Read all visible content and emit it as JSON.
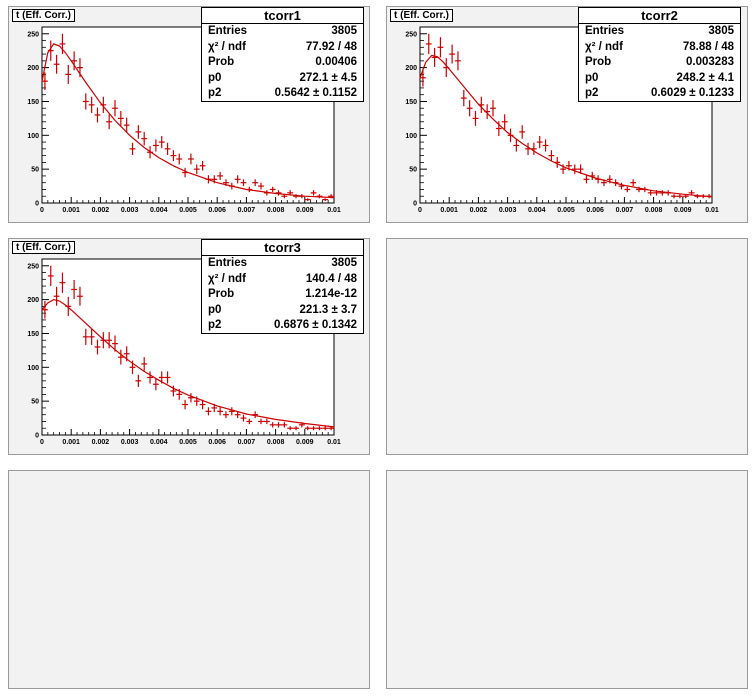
{
  "canvas": {
    "background": "#f2f2f2",
    "marker_color": "#cc0000",
    "fit_color": "#cc0000"
  },
  "pads": [
    {
      "histogram_title": "t (Eff. Corr.)",
      "stats": {
        "name": "tcorr1",
        "rows": [
          {
            "label": "Entries",
            "value": "3805"
          },
          {
            "label": "χ² / ndf",
            "value": "77.92 / 48"
          },
          {
            "label": "Prob",
            "value": "0.00406"
          },
          {
            "label": "p0",
            "value": "272.1 ± 4.5"
          },
          {
            "label": "p2",
            "value": "0.5642 ± 0.1152"
          }
        ]
      }
    },
    {
      "histogram_title": "t (Eff. Corr.)",
      "stats": {
        "name": "tcorr2",
        "rows": [
          {
            "label": "Entries",
            "value": "3805"
          },
          {
            "label": "χ² / ndf",
            "value": "78.88 / 48"
          },
          {
            "label": "Prob",
            "value": "0.003283"
          },
          {
            "label": "p0",
            "value": "248.2 ± 4.1"
          },
          {
            "label": "p2",
            "value": "0.6029 ± 0.1233"
          }
        ]
      }
    },
    {
      "histogram_title": "t (Eff. Corr.)",
      "stats": {
        "name": "tcorr3",
        "rows": [
          {
            "label": "Entries",
            "value": "3805"
          },
          {
            "label": "χ² / ndf",
            "value": "140.4 / 48"
          },
          {
            "label": "Prob",
            "value": "1.214e-12"
          },
          {
            "label": "p0",
            "value": "221.3 ± 3.7"
          },
          {
            "label": "p2",
            "value": "0.6876 ± 0.1342"
          }
        ]
      }
    },
    {
      "empty": true
    },
    {
      "empty": true
    },
    {
      "empty": true
    }
  ],
  "chart_data": [
    {
      "type": "scatter",
      "name": "tcorr1",
      "xlim": [
        0,
        0.01
      ],
      "ylim": [
        0,
        260
      ],
      "x_ticks": [
        "0",
        "0.001",
        "0.002",
        "0.003",
        "0.004",
        "0.005",
        "0.006",
        "0.007",
        "0.008",
        "0.009",
        "0.01"
      ],
      "y_ticks": [
        "0",
        "50",
        "100",
        "150",
        "200",
        "250"
      ],
      "points": {
        "x": [
          0.0001,
          0.0003,
          0.0005,
          0.0007,
          0.0009,
          0.0011,
          0.0013,
          0.0015,
          0.0017,
          0.0019,
          0.0021,
          0.0023,
          0.0025,
          0.0027,
          0.0029,
          0.0031,
          0.0033,
          0.0035,
          0.0037,
          0.0039,
          0.0041,
          0.0043,
          0.0045,
          0.0047,
          0.0049,
          0.0051,
          0.0053,
          0.0055,
          0.0057,
          0.0059,
          0.0061,
          0.0063,
          0.0065,
          0.0067,
          0.0069,
          0.0071,
          0.0073,
          0.0075,
          0.0077,
          0.0079,
          0.0081,
          0.0083,
          0.0085,
          0.0087,
          0.0089,
          0.0091,
          0.0093,
          0.0095,
          0.0097,
          0.0099
        ],
        "y": [
          180,
          225,
          205,
          235,
          190,
          210,
          200,
          150,
          145,
          130,
          145,
          120,
          140,
          125,
          115,
          80,
          105,
          95,
          75,
          85,
          90,
          80,
          70,
          65,
          45,
          65,
          50,
          55,
          35,
          35,
          40,
          30,
          25,
          35,
          30,
          20,
          30,
          25,
          15,
          20,
          15,
          10,
          15,
          10,
          10,
          5,
          15,
          10,
          5,
          10
        ],
        "yerr": [
          13,
          15,
          14,
          15,
          14,
          14,
          14,
          12,
          12,
          11,
          12,
          11,
          12,
          11,
          11,
          9,
          10,
          10,
          9,
          9,
          9,
          9,
          8,
          8,
          7,
          8,
          7,
          7,
          6,
          6,
          6,
          5,
          5,
          6,
          5,
          4,
          5,
          5,
          4,
          4,
          4,
          3,
          4,
          3,
          3,
          2,
          4,
          3,
          2,
          3
        ]
      },
      "fit_curve": {
        "x": [
          0,
          0.0002,
          0.0004,
          0.0006,
          0.0008,
          0.001,
          0.0015,
          0.002,
          0.0025,
          0.003,
          0.0035,
          0.004,
          0.0045,
          0.005,
          0.006,
          0.007,
          0.008,
          0.009,
          0.01
        ],
        "y": [
          180,
          222,
          235,
          232,
          222,
          210,
          178,
          148,
          122,
          100,
          82,
          67,
          55,
          45,
          30,
          20,
          14,
          10,
          8
        ]
      }
    },
    {
      "type": "scatter",
      "name": "tcorr2",
      "xlim": [
        0,
        0.01
      ],
      "ylim": [
        0,
        260
      ],
      "x_ticks": [
        "0",
        "0.001",
        "0.002",
        "0.003",
        "0.004",
        "0.005",
        "0.006",
        "0.007",
        "0.008",
        "0.009",
        "0.01"
      ],
      "y_ticks": [
        "0",
        "50",
        "100",
        "150",
        "200",
        "250"
      ],
      "points": {
        "x": [
          0.0001,
          0.0003,
          0.0005,
          0.0007,
          0.0009,
          0.0011,
          0.0013,
          0.0015,
          0.0017,
          0.0019,
          0.0021,
          0.0023,
          0.0025,
          0.0027,
          0.0029,
          0.0031,
          0.0033,
          0.0035,
          0.0037,
          0.0039,
          0.0041,
          0.0043,
          0.0045,
          0.0047,
          0.0049,
          0.0051,
          0.0053,
          0.0055,
          0.0057,
          0.0059,
          0.0061,
          0.0063,
          0.0065,
          0.0067,
          0.0069,
          0.0071,
          0.0073,
          0.0075,
          0.0077,
          0.0079,
          0.0081,
          0.0083,
          0.0085,
          0.0087,
          0.0089,
          0.0091,
          0.0093,
          0.0095,
          0.0097,
          0.0099
        ],
        "y": [
          185,
          235,
          215,
          230,
          200,
          220,
          210,
          155,
          140,
          125,
          145,
          135,
          140,
          110,
          120,
          100,
          85,
          105,
          80,
          80,
          90,
          85,
          70,
          60,
          50,
          55,
          50,
          50,
          35,
          40,
          35,
          30,
          35,
          30,
          25,
          20,
          30,
          20,
          20,
          15,
          15,
          15,
          15,
          10,
          10,
          10,
          15,
          10,
          10,
          10
        ],
        "yerr": [
          13,
          15,
          14,
          15,
          14,
          14,
          14,
          12,
          12,
          11,
          12,
          11,
          12,
          11,
          11,
          10,
          9,
          10,
          9,
          9,
          9,
          9,
          8,
          8,
          7,
          7,
          7,
          7,
          6,
          6,
          6,
          5,
          6,
          5,
          5,
          4,
          5,
          4,
          4,
          4,
          4,
          4,
          4,
          3,
          3,
          3,
          4,
          3,
          3,
          3
        ]
      },
      "fit_curve": {
        "x": [
          0,
          0.0002,
          0.0004,
          0.0006,
          0.0008,
          0.001,
          0.0015,
          0.002,
          0.0025,
          0.003,
          0.0035,
          0.004,
          0.0045,
          0.005,
          0.006,
          0.007,
          0.008,
          0.009,
          0.01
        ],
        "y": [
          185,
          208,
          218,
          216,
          208,
          198,
          172,
          146,
          124,
          104,
          88,
          74,
          62,
          52,
          37,
          26,
          18,
          13,
          9
        ]
      }
    },
    {
      "type": "scatter",
      "name": "tcorr3",
      "xlim": [
        0,
        0.01
      ],
      "ylim": [
        0,
        260
      ],
      "x_ticks": [
        "0",
        "0.001",
        "0.002",
        "0.003",
        "0.004",
        "0.005",
        "0.006",
        "0.007",
        "0.008",
        "0.009",
        "0.01"
      ],
      "y_ticks": [
        "0",
        "50",
        "100",
        "150",
        "200",
        "250"
      ],
      "points": {
        "x": [
          0.0001,
          0.0003,
          0.0005,
          0.0007,
          0.0009,
          0.0011,
          0.0013,
          0.0015,
          0.0017,
          0.0019,
          0.0021,
          0.0023,
          0.0025,
          0.0027,
          0.0029,
          0.0031,
          0.0033,
          0.0035,
          0.0037,
          0.0039,
          0.0041,
          0.0043,
          0.0045,
          0.0047,
          0.0049,
          0.0051,
          0.0053,
          0.0055,
          0.0057,
          0.0059,
          0.0061,
          0.0063,
          0.0065,
          0.0067,
          0.0069,
          0.0071,
          0.0073,
          0.0075,
          0.0077,
          0.0079,
          0.0081,
          0.0083,
          0.0085,
          0.0087,
          0.0089,
          0.0091,
          0.0093,
          0.0095,
          0.0097,
          0.0099
        ],
        "y": [
          185,
          235,
          205,
          225,
          190,
          215,
          205,
          145,
          145,
          130,
          140,
          140,
          135,
          115,
          120,
          100,
          80,
          105,
          85,
          75,
          85,
          85,
          65,
          60,
          45,
          55,
          50,
          45,
          35,
          40,
          35,
          30,
          35,
          30,
          25,
          20,
          30,
          20,
          20,
          15,
          15,
          15,
          10,
          10,
          15,
          10,
          10,
          10,
          10,
          10
        ],
        "yerr": [
          13,
          15,
          14,
          15,
          14,
          14,
          14,
          12,
          12,
          11,
          12,
          12,
          12,
          11,
          11,
          10,
          9,
          10,
          9,
          9,
          9,
          9,
          8,
          8,
          7,
          7,
          7,
          7,
          6,
          6,
          6,
          5,
          6,
          5,
          5,
          4,
          5,
          4,
          4,
          4,
          4,
          4,
          3,
          3,
          4,
          3,
          3,
          3,
          3,
          3
        ]
      },
      "fit_curve": {
        "x": [
          0,
          0.0002,
          0.0004,
          0.0006,
          0.0008,
          0.001,
          0.0015,
          0.002,
          0.0025,
          0.003,
          0.0035,
          0.004,
          0.0045,
          0.005,
          0.006,
          0.007,
          0.008,
          0.009,
          0.01
        ],
        "y": [
          185,
          195,
          200,
          198,
          192,
          185,
          165,
          145,
          126,
          109,
          94,
          81,
          69,
          59,
          43,
          31,
          23,
          17,
          12
        ]
      }
    }
  ]
}
